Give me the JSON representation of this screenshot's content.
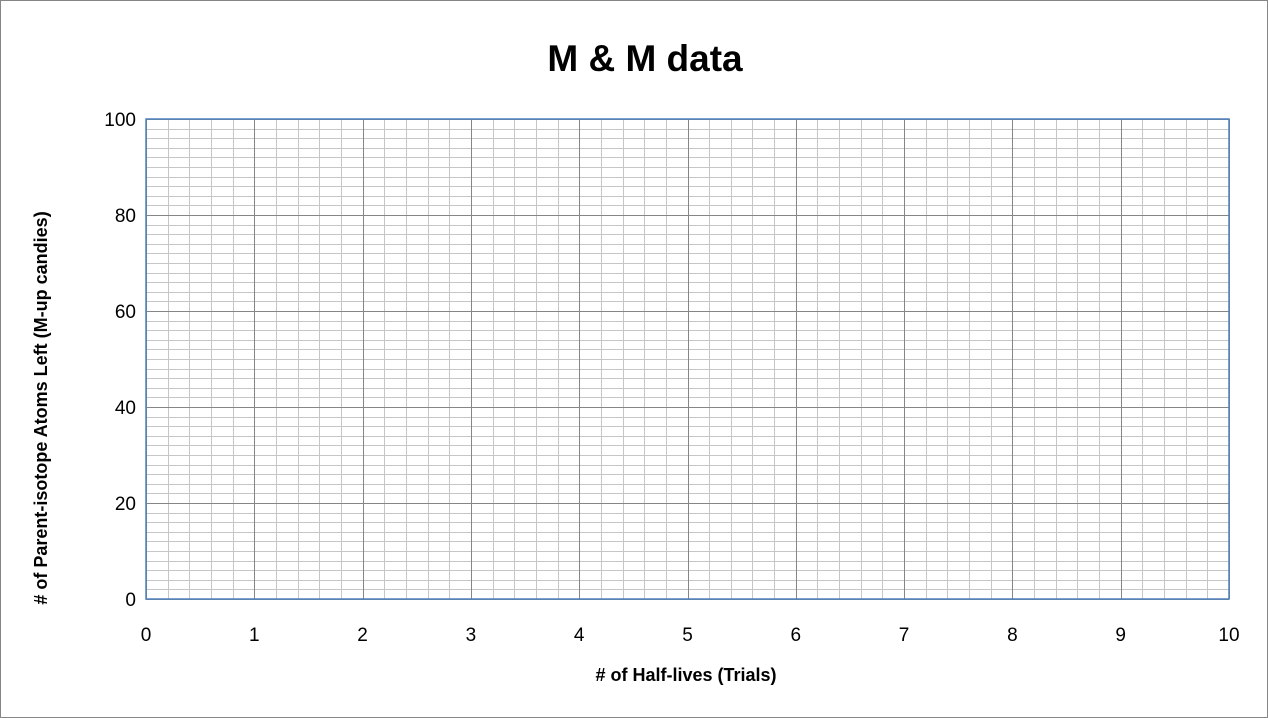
{
  "chart_data": {
    "type": "scatter",
    "title": "M & M data",
    "xlabel": "# of Half-lives (Trials)",
    "ylabel": "# of Parent-isotope Atoms Left (M-up candies)",
    "xlim": [
      0,
      10
    ],
    "ylim": [
      0,
      100
    ],
    "x_major_step": 1,
    "y_major_step": 20,
    "x_minor_step": 0.2,
    "y_minor_step": 2,
    "x_ticks": [
      "0",
      "1",
      "2",
      "3",
      "4",
      "5",
      "6",
      "7",
      "8",
      "9",
      "10"
    ],
    "y_ticks": [
      "0",
      "20",
      "40",
      "60",
      "80",
      "100"
    ],
    "grid": true,
    "legend": "none",
    "series": []
  },
  "colors": {
    "plot_border": "#4f81bd",
    "major_grid": "#868686",
    "minor_grid": "#c6c6c6"
  }
}
